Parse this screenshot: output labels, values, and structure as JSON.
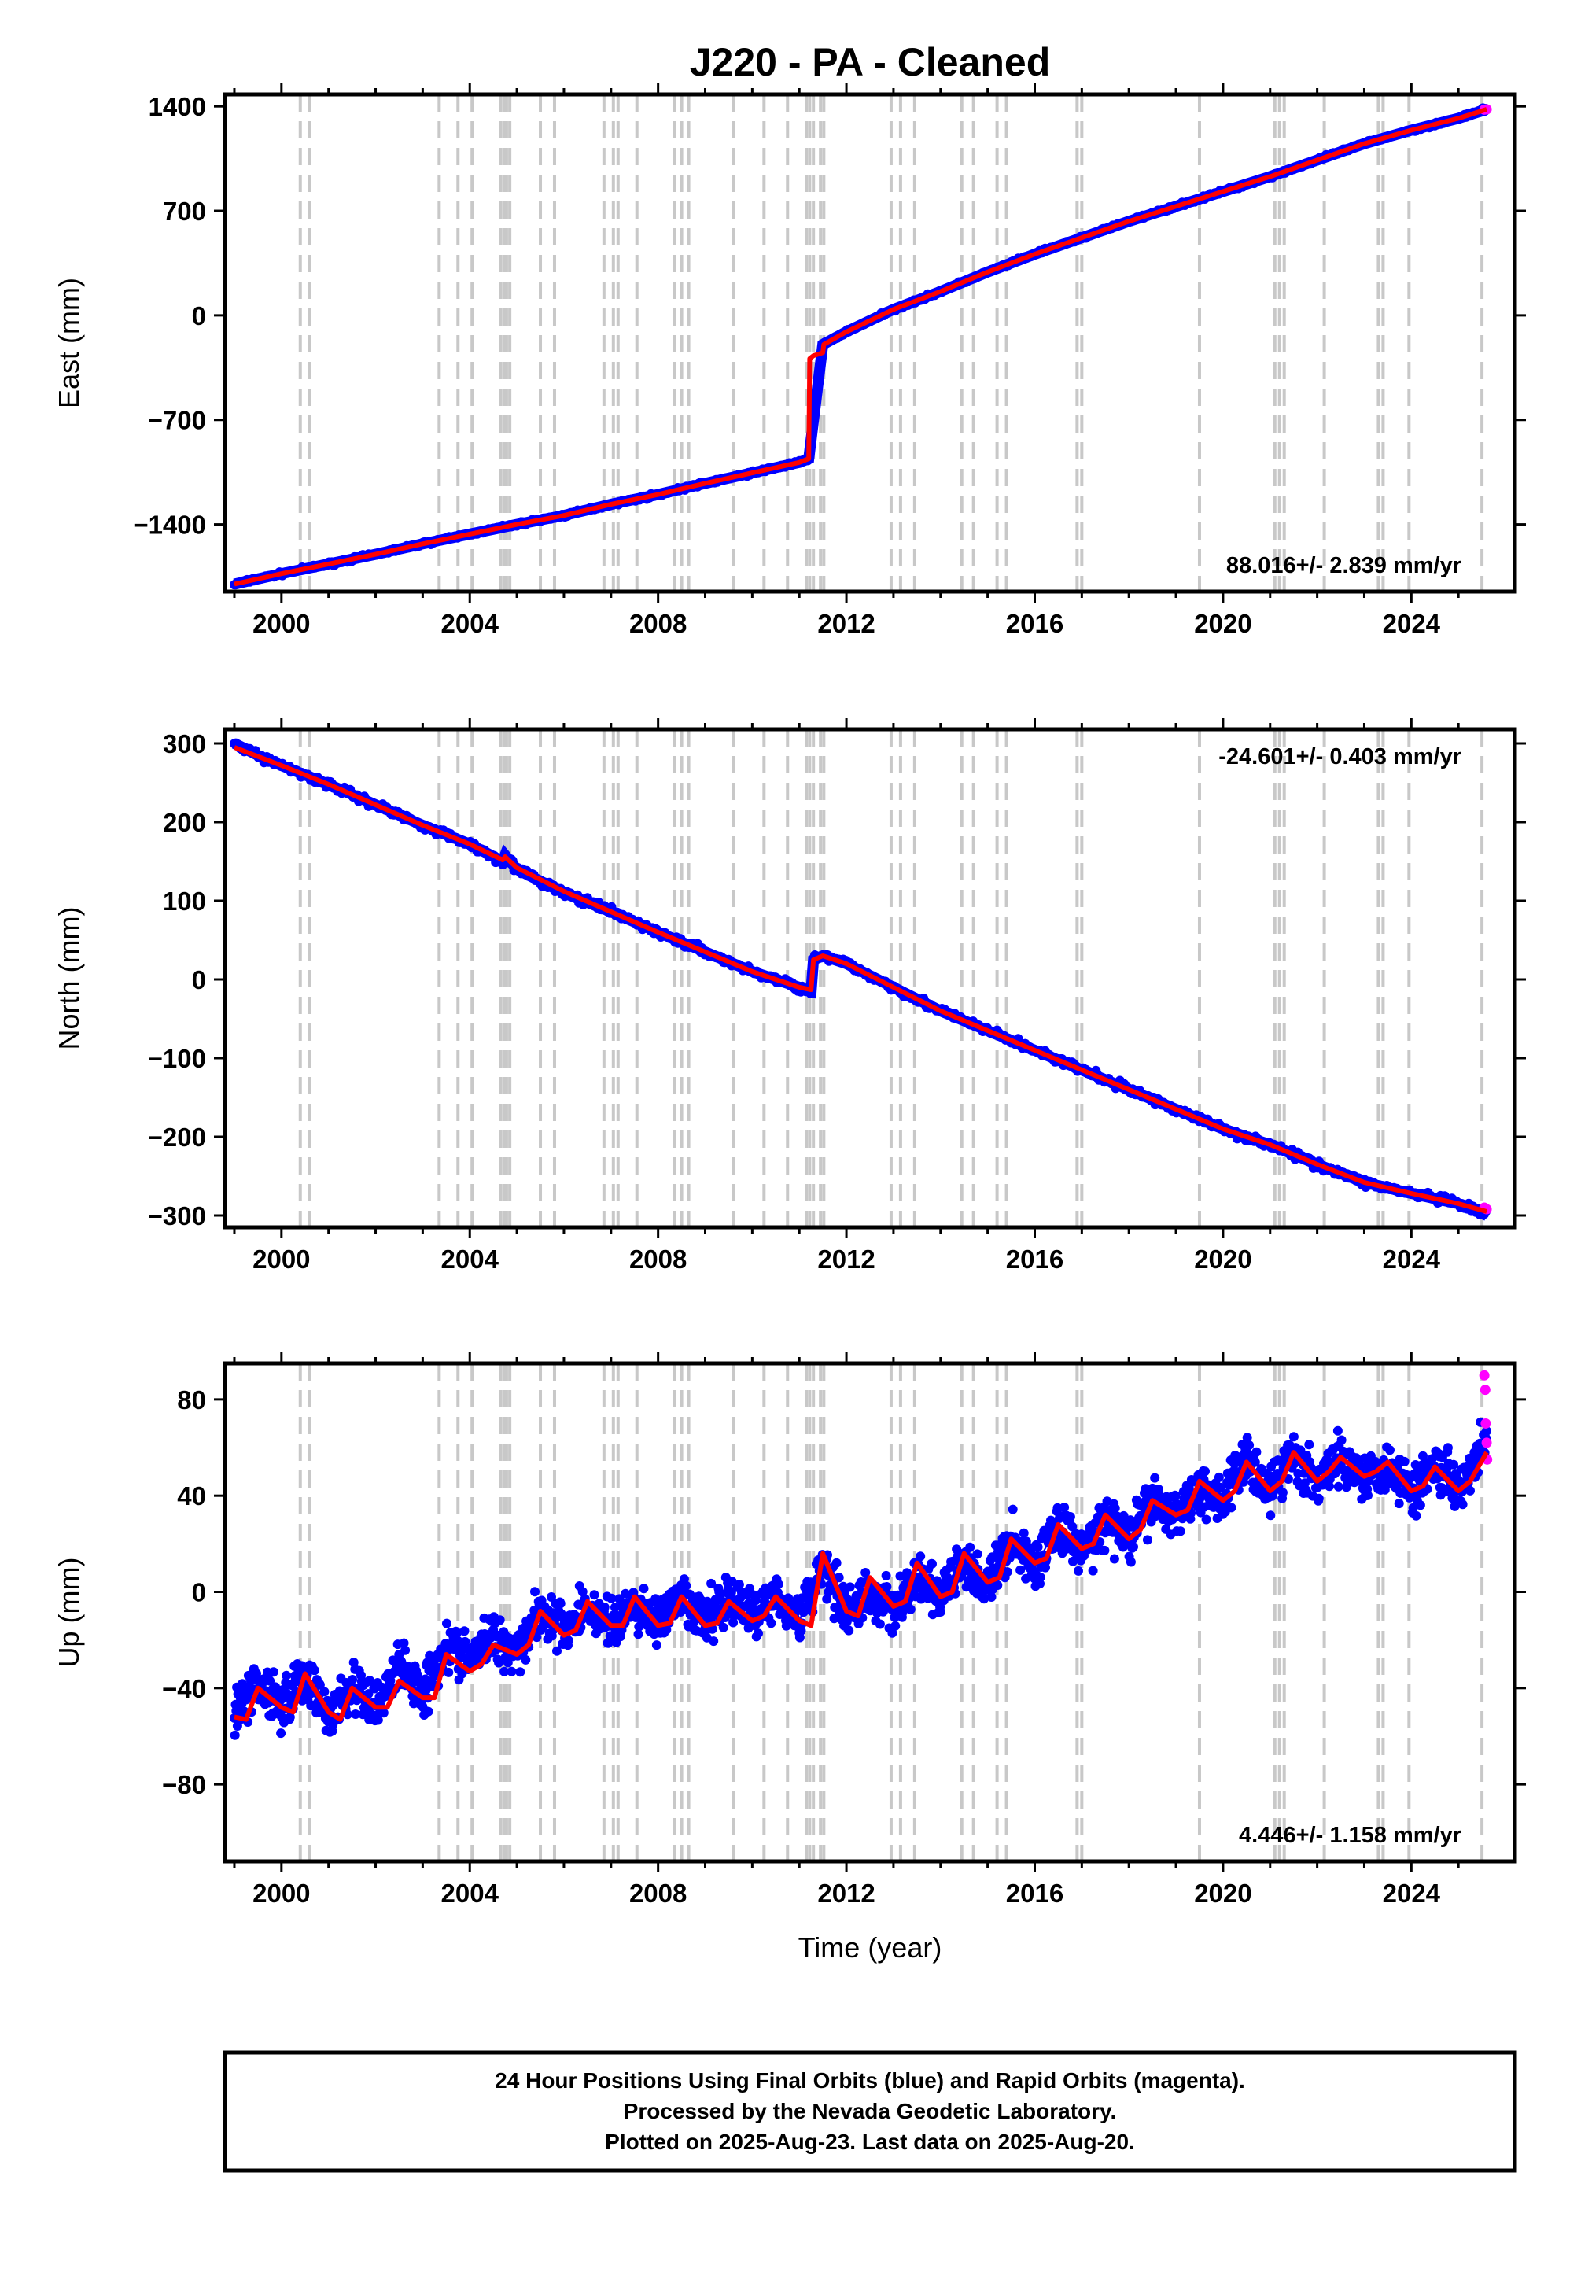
{
  "chart_data": {
    "type": "scatter",
    "title": "J220  - PA - Cleaned",
    "xlabel": "Time (year)",
    "xlim": [
      1998.8,
      2026.2
    ],
    "xticks": [
      2000,
      2004,
      2008,
      2012,
      2016,
      2020,
      2024
    ],
    "colors": {
      "final": "#0000ff",
      "rapid": "#ff00ff",
      "model": "#ff0000",
      "events": "#c8c8c8"
    },
    "event_lines": [
      2000.4,
      2000.6,
      2003.35,
      2003.75,
      2004.05,
      2004.65,
      2004.72,
      2004.78,
      2004.85,
      2005.5,
      2005.8,
      2006.85,
      2007.05,
      2007.15,
      2007.55,
      2008.35,
      2008.5,
      2008.65,
      2009.6,
      2010.25,
      2010.75,
      2011.15,
      2011.22,
      2011.3,
      2011.45,
      2011.52,
      2012.95,
      2013.15,
      2013.45,
      2014.45,
      2014.7,
      2015.2,
      2015.4,
      2016.9,
      2017.0,
      2019.5,
      2021.1,
      2021.2,
      2021.3,
      2022.15,
      2023.3,
      2023.4,
      2023.95,
      2025.5
    ],
    "panels": [
      {
        "id": "east",
        "ylabel": "East (mm)",
        "ylim": [
          -1850,
          1480
        ],
        "yticks": [
          1400,
          700,
          0,
          -700,
          -1400
        ],
        "ytick_labels": [
          "1400",
          "700",
          "0",
          "−700",
          "−1400"
        ],
        "rate_label": "88.016+/- 2.839 mm/yr",
        "rate_position": "bottom-right",
        "final_orbits": {
          "x": [
            1999.0,
            2000.0,
            2001.0,
            2002.0,
            2003.0,
            2004.0,
            2005.0,
            2006.0,
            2007.0,
            2008.0,
            2009.0,
            2010.0,
            2011.0,
            2011.2,
            2011.5,
            2012.0,
            2013.0,
            2014.0,
            2015.0,
            2016.0,
            2017.0,
            2018.0,
            2019.0,
            2020.0,
            2021.0,
            2022.0,
            2023.0,
            2024.0,
            2025.0,
            2025.6
          ],
          "y": [
            -1800,
            -1730,
            -1665,
            -1600,
            -1530,
            -1465,
            -1400,
            -1340,
            -1265,
            -1200,
            -1125,
            -1055,
            -985,
            -960,
            -195,
            -110,
            40,
            160,
            290,
            410,
            520,
            630,
            730,
            830,
            930,
            1040,
            1150,
            1240,
            1320,
            1380
          ]
        },
        "rapid_orbits": {
          "x": [
            2025.55,
            2025.6
          ],
          "y": [
            1378,
            1380
          ]
        },
        "model": {
          "x": [
            1999.0,
            2000.0,
            2001.0,
            2002.0,
            2003.0,
            2004.0,
            2005.0,
            2006.0,
            2007.0,
            2008.0,
            2009.0,
            2010.0,
            2011.0,
            2011.2,
            2011.22,
            2011.3,
            2011.5,
            2011.52,
            2012.0,
            2013.0,
            2014.0,
            2015.0,
            2016.0,
            2017.0,
            2018.0,
            2019.0,
            2020.0,
            2021.0,
            2022.0,
            2023.0,
            2024.0,
            2025.0,
            2025.6
          ],
          "y": [
            -1800,
            -1730,
            -1665,
            -1600,
            -1530,
            -1465,
            -1400,
            -1340,
            -1265,
            -1200,
            -1125,
            -1055,
            -985,
            -960,
            -290,
            -270,
            -250,
            -195,
            -110,
            40,
            160,
            290,
            410,
            520,
            630,
            730,
            830,
            930,
            1040,
            1150,
            1240,
            1320,
            1380
          ]
        }
      },
      {
        "id": "north",
        "ylabel": "North (mm)",
        "ylim": [
          -315,
          318
        ],
        "yticks": [
          300,
          200,
          100,
          0,
          -100,
          -200,
          -300
        ],
        "ytick_labels": [
          "300",
          "200",
          "100",
          "0",
          "−100",
          "−200",
          "−300"
        ],
        "rate_label": "-24.601+/- 0.403 mm/yr",
        "rate_position": "top-right",
        "final_orbits": {
          "x": [
            1999.0,
            1999.5,
            2000.0,
            2001.0,
            2002.0,
            2003.0,
            2004.0,
            2004.7,
            2004.75,
            2005.0,
            2006.0,
            2007.0,
            2008.0,
            2009.0,
            2010.0,
            2011.0,
            2011.25,
            2011.3,
            2011.5,
            2012.0,
            2013.0,
            2014.0,
            2015.0,
            2016.0,
            2017.0,
            2018.0,
            2019.0,
            2020.0,
            2021.0,
            2022.0,
            2023.0,
            2024.0,
            2025.0,
            2025.6
          ],
          "y": [
            300,
            285,
            272,
            248,
            222,
            196,
            172,
            150,
            158,
            140,
            110,
            86,
            60,
            35,
            10,
            -10,
            -15,
            25,
            30,
            20,
            -10,
            -40,
            -65,
            -90,
            -115,
            -140,
            -165,
            -190,
            -210,
            -235,
            -258,
            -272,
            -285,
            -300
          ]
        },
        "rapid_orbits": {
          "x": [
            2025.55,
            2025.6
          ],
          "y": [
            -290,
            -292
          ]
        },
        "model": {
          "x": [
            1999.0,
            2000.0,
            2001.0,
            2002.0,
            2003.0,
            2004.0,
            2004.7,
            2004.75,
            2005.0,
            2006.0,
            2007.0,
            2008.0,
            2009.0,
            2010.0,
            2011.0,
            2011.25,
            2011.3,
            2011.5,
            2012.0,
            2013.0,
            2014.0,
            2015.0,
            2016.0,
            2017.0,
            2018.0,
            2019.0,
            2020.0,
            2021.0,
            2022.0,
            2023.0,
            2024.0,
            2025.0,
            2025.6
          ],
          "y": [
            295,
            272,
            248,
            222,
            196,
            172,
            152,
            156,
            142,
            112,
            86,
            60,
            35,
            10,
            -10,
            -13,
            25,
            30,
            20,
            -10,
            -40,
            -65,
            -90,
            -115,
            -140,
            -165,
            -190,
            -210,
            -235,
            -258,
            -272,
            -285,
            -295
          ]
        }
      },
      {
        "id": "up",
        "ylabel": "Up (mm)",
        "ylim": [
          -112,
          95
        ],
        "yticks": [
          80,
          40,
          0,
          -40,
          -80
        ],
        "ytick_labels": [
          "80",
          "40",
          "0",
          "−40",
          "−80"
        ],
        "rate_label": "4.446+/- 1.158 mm/yr",
        "rate_position": "bottom-right",
        "final_orbits": {
          "x": [
            1999.0,
            1999.5,
            2000.0,
            2000.5,
            2001.0,
            2001.5,
            2002.0,
            2002.5,
            2003.0,
            2003.5,
            2004.0,
            2004.5,
            2005.0,
            2005.5,
            2006.0,
            2006.5,
            2007.0,
            2007.5,
            2008.0,
            2008.5,
            2009.0,
            2009.5,
            2010.0,
            2010.5,
            2011.0,
            2011.5,
            2012.0,
            2012.5,
            2013.0,
            2013.5,
            2014.0,
            2014.5,
            2015.0,
            2015.5,
            2016.0,
            2016.5,
            2017.0,
            2017.5,
            2018.0,
            2018.5,
            2019.0,
            2019.5,
            2020.0,
            2020.5,
            2021.0,
            2021.5,
            2022.0,
            2022.5,
            2023.0,
            2023.5,
            2024.0,
            2024.5,
            2025.0,
            2025.6
          ],
          "y": [
            -52,
            -38,
            -46,
            -35,
            -52,
            -40,
            -48,
            -30,
            -42,
            -22,
            -28,
            -18,
            -24,
            -8,
            -16,
            -6,
            -14,
            -6,
            -12,
            -4,
            -12,
            -2,
            -10,
            0,
            -12,
            12,
            -8,
            -2,
            -6,
            5,
            -2,
            12,
            2,
            22,
            10,
            28,
            16,
            30,
            22,
            38,
            32,
            44,
            38,
            56,
            42,
            58,
            44,
            56,
            48,
            52,
            42,
            54,
            44,
            62
          ]
        },
        "rapid_orbits": {
          "x": [
            2025.55,
            2025.57,
            2025.58,
            2025.6,
            2025.61
          ],
          "y": [
            90,
            84,
            70,
            62,
            55
          ]
        },
        "model": {
          "x": [
            1999.0,
            1999.25,
            1999.5,
            2000.0,
            2000.25,
            2000.5,
            2001.0,
            2001.25,
            2001.5,
            2002.0,
            2002.25,
            2002.5,
            2003.0,
            2003.25,
            2003.5,
            2004.0,
            2004.25,
            2004.5,
            2005.0,
            2005.25,
            2005.5,
            2006.0,
            2006.25,
            2006.5,
            2007.0,
            2007.25,
            2007.5,
            2008.0,
            2008.25,
            2008.5,
            2009.0,
            2009.25,
            2009.5,
            2010.0,
            2010.25,
            2010.5,
            2011.0,
            2011.25,
            2011.5,
            2012.0,
            2012.25,
            2012.5,
            2013.0,
            2013.25,
            2013.5,
            2014.0,
            2014.25,
            2014.5,
            2015.0,
            2015.25,
            2015.5,
            2016.0,
            2016.25,
            2016.5,
            2017.0,
            2017.25,
            2017.5,
            2018.0,
            2018.25,
            2018.5,
            2019.0,
            2019.25,
            2019.5,
            2020.0,
            2020.25,
            2020.5,
            2021.0,
            2021.25,
            2021.5,
            2022.0,
            2022.25,
            2022.5,
            2023.0,
            2023.25,
            2023.5,
            2024.0,
            2024.25,
            2024.5,
            2025.0,
            2025.25,
            2025.6
          ],
          "y": [
            -52,
            -53,
            -40,
            -48,
            -50,
            -34,
            -50,
            -53,
            -40,
            -48,
            -48,
            -37,
            -44,
            -44,
            -26,
            -33,
            -30,
            -22,
            -26,
            -22,
            -8,
            -18,
            -16,
            -4,
            -14,
            -14,
            -2,
            -14,
            -13,
            -2,
            -14,
            -13,
            -4,
            -12,
            -10,
            -2,
            -12,
            -14,
            16,
            -8,
            -10,
            6,
            -6,
            -4,
            12,
            -2,
            0,
            16,
            4,
            6,
            22,
            12,
            14,
            28,
            18,
            20,
            32,
            22,
            26,
            38,
            32,
            34,
            46,
            38,
            42,
            54,
            42,
            46,
            58,
            46,
            50,
            56,
            48,
            50,
            54,
            42,
            44,
            52,
            42,
            46,
            58
          ]
        }
      }
    ],
    "footer": [
      "24 Hour Positions Using Final Orbits (blue) and Rapid Orbits (magenta).",
      "Processed by the Nevada Geodetic Laboratory.",
      "Plotted on 2025-Aug-23. Last data on 2025-Aug-20."
    ]
  }
}
